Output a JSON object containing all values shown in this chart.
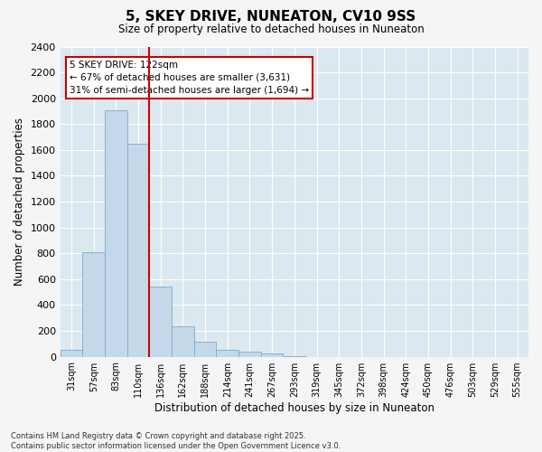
{
  "title": "5, SKEY DRIVE, NUNEATON, CV10 9SS",
  "subtitle": "Size of property relative to detached houses in Nuneaton",
  "xlabel": "Distribution of detached houses by size in Nuneaton",
  "ylabel": "Number of detached properties",
  "bar_color": "#c5d8ea",
  "bar_edge_color": "#7aaac8",
  "plot_bg_color": "#dce8f0",
  "fig_bg_color": "#f5f5f5",
  "grid_color": "#ffffff",
  "vline_color": "#cc0000",
  "vline_x_idx": 3.5,
  "annotation_text": "5 SKEY DRIVE: 122sqm\n← 67% of detached houses are smaller (3,631)\n31% of semi-detached houses are larger (1,694) →",
  "annotation_box_facecolor": "#ffffff",
  "annotation_box_edgecolor": "#cc0000",
  "categories": [
    "31sqm",
    "57sqm",
    "83sqm",
    "110sqm",
    "136sqm",
    "162sqm",
    "188sqm",
    "214sqm",
    "241sqm",
    "267sqm",
    "293sqm",
    "319sqm",
    "345sqm",
    "372sqm",
    "398sqm",
    "424sqm",
    "450sqm",
    "476sqm",
    "503sqm",
    "529sqm",
    "555sqm"
  ],
  "values": [
    50,
    810,
    1910,
    1650,
    545,
    235,
    115,
    52,
    40,
    25,
    5,
    0,
    0,
    0,
    0,
    0,
    0,
    0,
    0,
    0,
    0
  ],
  "ylim": [
    0,
    2400
  ],
  "yticks": [
    0,
    200,
    400,
    600,
    800,
    1000,
    1200,
    1400,
    1600,
    1800,
    2000,
    2200,
    2400
  ],
  "footnote": "Contains HM Land Registry data © Crown copyright and database right 2025.\nContains public sector information licensed under the Open Government Licence v3.0."
}
